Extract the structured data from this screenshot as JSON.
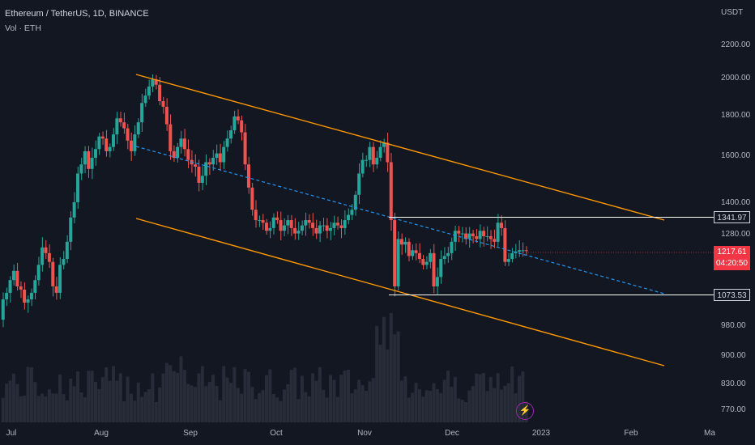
{
  "header": {
    "title": "Ethereum / TetherUS, 1D, BINANCE",
    "indicator": "Vol · ETH"
  },
  "price_axis": {
    "currency": "USDT",
    "ticks": [
      "2200.00",
      "2000.00",
      "1800.00",
      "1600.00",
      "1400.00",
      "1280.00",
      "980.00",
      "900.00",
      "830.00",
      "770.00"
    ]
  },
  "time_axis": {
    "ticks": [
      "Jul",
      "Aug",
      "Sep",
      "Oct",
      "Nov",
      "Dec",
      "2023",
      "Feb",
      "Ma"
    ]
  },
  "levels": {
    "resistance": "1341.97",
    "support": "1073.53"
  },
  "last_price": {
    "value": "1217.61",
    "countdown": "04:20:50"
  },
  "colors": {
    "background": "#131722",
    "up": "#26a69a",
    "down": "#ef5350",
    "channel": "#ff9800",
    "midline": "#2196f3",
    "level": "#ffffff"
  },
  "chart_data": {
    "type": "candlestick",
    "symbol": "Ethereum / TetherUS",
    "interval": "1D",
    "exchange": "BINANCE",
    "close_approx": [
      1060,
      1080,
      1120,
      1150,
      1100,
      1090,
      1050,
      1060,
      1080,
      1120,
      1170,
      1230,
      1210,
      1180,
      1100,
      1080,
      1170,
      1190,
      1250,
      1340,
      1400,
      1520,
      1560,
      1620,
      1540,
      1590,
      1630,
      1690,
      1680,
      1620,
      1640,
      1700,
      1780,
      1760,
      1730,
      1670,
      1620,
      1700,
      1760,
      1860,
      1900,
      1950,
      1990,
      1960,
      1870,
      1840,
      1750,
      1620,
      1590,
      1640,
      1680,
      1630,
      1580,
      1560,
      1550,
      1480,
      1510,
      1570,
      1560,
      1590,
      1610,
      1570,
      1640,
      1680,
      1720,
      1790,
      1770,
      1710,
      1560,
      1460,
      1370,
      1330,
      1330,
      1320,
      1290,
      1300,
      1340,
      1330,
      1290,
      1310,
      1330,
      1300,
      1280,
      1290,
      1310,
      1330,
      1320,
      1300,
      1280,
      1310,
      1310,
      1290,
      1300,
      1320,
      1310,
      1300,
      1330,
      1350,
      1370,
      1430,
      1520,
      1580,
      1580,
      1640,
      1560,
      1590,
      1640,
      1660,
      1570,
      1330,
      1100,
      1260,
      1240,
      1250,
      1200,
      1220,
      1210,
      1190,
      1170,
      1180,
      1210,
      1100,
      1130,
      1190,
      1200,
      1210,
      1250,
      1290,
      1280,
      1280,
      1260,
      1280,
      1270,
      1260,
      1290,
      1270,
      1270,
      1260,
      1250,
      1320,
      1300,
      1180,
      1190,
      1210,
      1215,
      1220,
      1220,
      1217.61
    ],
    "levels": [
      1341.97,
      1073.53
    ],
    "last": 1217.61
  }
}
